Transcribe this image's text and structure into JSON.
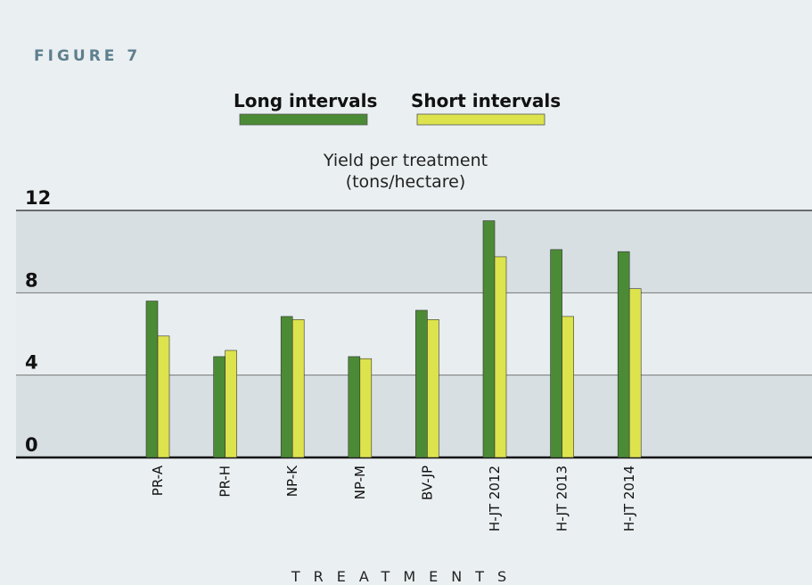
{
  "chart_data": {
    "type": "bar",
    "figure_label": "FIGURE 7",
    "ylabel": [
      "Yield per treatment",
      "(tons/hectare)"
    ],
    "xlabel": "TREATMENTS",
    "categories": [
      "PR-A",
      "PR-H",
      "NP-K",
      "NP-M",
      "BV-JP",
      "H-JT 2012",
      "H-JT 2013",
      "H-JT 2014"
    ],
    "series": [
      {
        "name": "Long intervals",
        "color": "#4b8b35",
        "values": [
          7.6,
          4.9,
          6.85,
          4.9,
          7.15,
          11.5,
          10.1,
          10.0
        ]
      },
      {
        "name": "Short intervals",
        "color": "#dde34c",
        "values": [
          5.9,
          5.2,
          6.7,
          4.8,
          6.7,
          9.75,
          6.85,
          8.2
        ]
      }
    ],
    "ylim": [
      0,
      12
    ],
    "yticks": [
      0,
      4,
      8,
      12
    ],
    "grid": true
  }
}
